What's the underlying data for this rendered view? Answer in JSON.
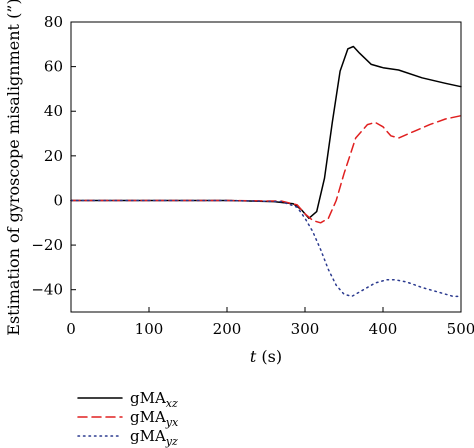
{
  "chart_data": {
    "type": "line",
    "title": "",
    "xlabel": {
      "var": "t",
      "unit": " (s)"
    },
    "ylabel": "Estimation of gyroscope misalignment (”)",
    "xlim": [
      0,
      500
    ],
    "ylim": [
      -50,
      80
    ],
    "xticks": [
      0,
      100,
      200,
      300,
      400,
      500
    ],
    "yticks": [
      -40,
      -20,
      0,
      20,
      40,
      60,
      80
    ],
    "grid": false,
    "legend": "bottom-left",
    "series": [
      {
        "name": "gMA",
        "subscript": "xz",
        "color": "#000000",
        "dash": "solid",
        "x": [
          0,
          100,
          200,
          260,
          285,
          295,
          305,
          315,
          325,
          335,
          345,
          355,
          362,
          370,
          385,
          400,
          420,
          450,
          480,
          500
        ],
        "y": [
          0,
          0,
          0,
          -0.5,
          -1.5,
          -4,
          -8,
          -5,
          10,
          35,
          58,
          68,
          69,
          66,
          61,
          59.5,
          58.5,
          55,
          52.5,
          51
        ]
      },
      {
        "name": "gMA",
        "subscript": "yx",
        "color": "#e02020",
        "dash": "dashed",
        "x": [
          0,
          100,
          200,
          270,
          290,
          300,
          310,
          320,
          330,
          340,
          350,
          365,
          380,
          390,
          400,
          410,
          420,
          440,
          460,
          480,
          500
        ],
        "y": [
          0,
          0,
          0,
          -0.3,
          -2,
          -6,
          -9,
          -10,
          -8,
          0,
          12,
          28,
          34,
          35,
          33,
          29,
          28,
          31,
          34,
          36.5,
          38
        ]
      },
      {
        "name": "gMA",
        "subscript": "yz",
        "color": "#2b3a8f",
        "dash": "dotted",
        "x": [
          0,
          100,
          200,
          270,
          290,
          300,
          310,
          320,
          330,
          340,
          350,
          360,
          375,
          390,
          405,
          415,
          430,
          450,
          470,
          490,
          500
        ],
        "y": [
          0,
          0,
          0,
          -0.5,
          -3,
          -8,
          -14,
          -22,
          -31,
          -38,
          -42,
          -43,
          -40,
          -37,
          -35.5,
          -35.5,
          -36.5,
          -39,
          -41,
          -43,
          -43
        ]
      }
    ]
  }
}
